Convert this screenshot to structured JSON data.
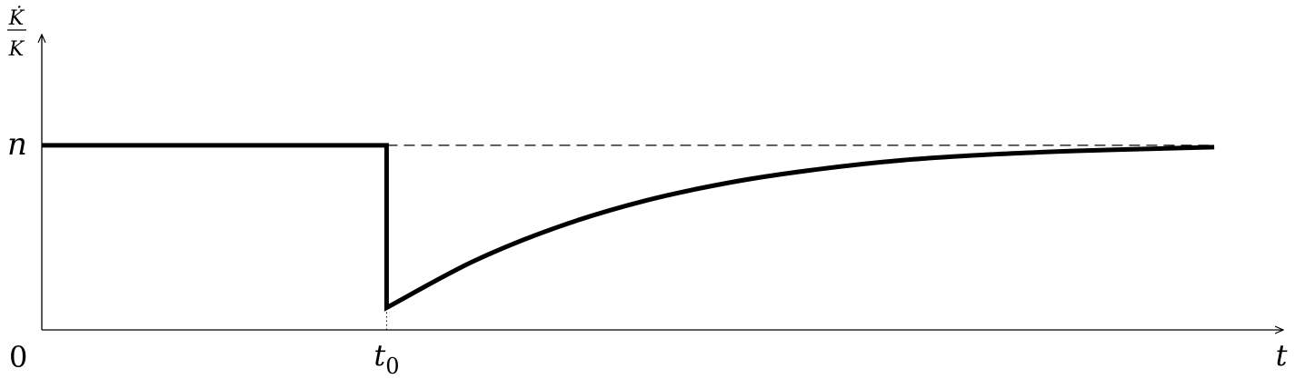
{
  "chart_data": {
    "type": "line",
    "title": "",
    "xlabel": "t",
    "ylabel": {
      "numerator": "K̇",
      "denominator": "K"
    },
    "origin_label": "0",
    "x_ticks": [
      {
        "label_base": "t",
        "label_sub": "0",
        "x": 1
      }
    ],
    "y_ticks": [
      {
        "label": "n",
        "y": 1
      }
    ],
    "xlim": [
      0,
      3.6
    ],
    "ylim": [
      0,
      1.6
    ],
    "reference_line": {
      "y": 1,
      "x_from": 1,
      "x_to": 3.4,
      "style": "dashed"
    },
    "guide_line": {
      "x": 1,
      "y_from": 0,
      "y_to": 0.12,
      "style": "dotted"
    },
    "series": [
      {
        "x": [
          0,
          1,
          1,
          1.25,
          1.5,
          1.75,
          2.0,
          2.25,
          2.5,
          2.75,
          3.0,
          3.2,
          3.4
        ],
        "y": [
          1,
          1,
          0.12,
          0.37,
          0.56,
          0.7,
          0.8,
          0.87,
          0.92,
          0.95,
          0.97,
          0.98,
          0.99
        ]
      }
    ],
    "grid": false,
    "legend": "none"
  }
}
